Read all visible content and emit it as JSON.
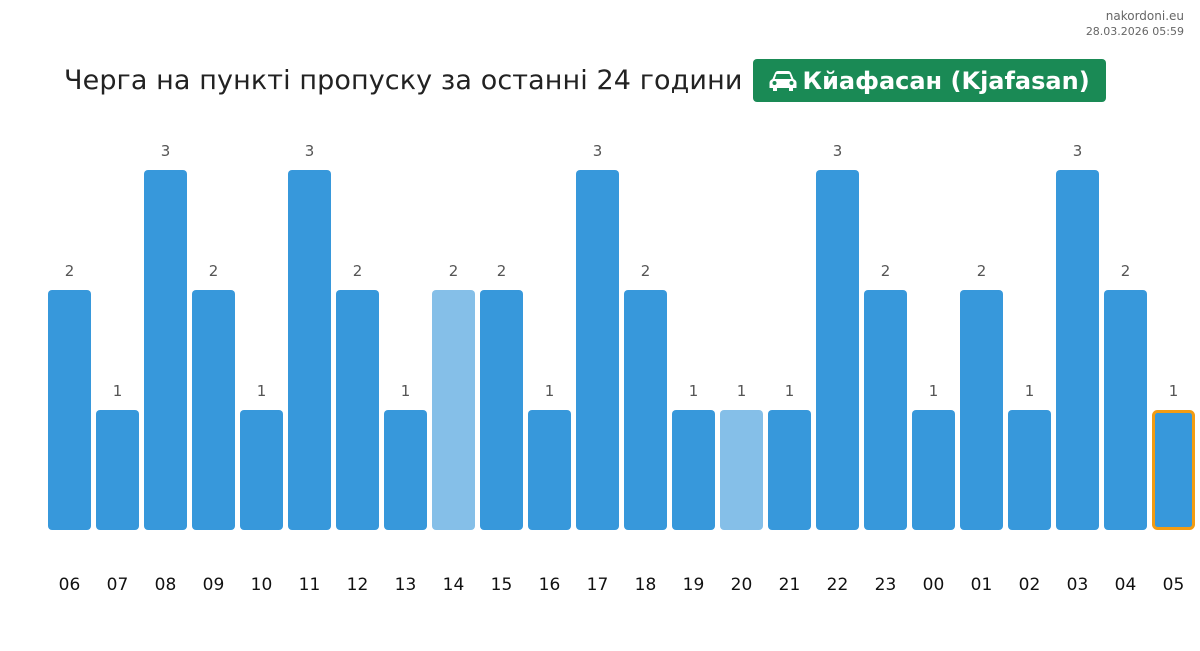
{
  "site": {
    "name": "nakordoni.eu",
    "timestamp": "28.03.2026 05:59"
  },
  "header": {
    "title": "Черга на пункті пропуску за останні 24 години",
    "crossing_name": "Кйафасан (Kjafasan)",
    "crossing_icon": "car-icon",
    "crossing_color": "#1a8a55"
  },
  "chart_data": {
    "type": "bar",
    "categories": [
      "06",
      "07",
      "08",
      "09",
      "10",
      "11",
      "12",
      "13",
      "14",
      "15",
      "16",
      "17",
      "18",
      "19",
      "20",
      "21",
      "22",
      "23",
      "00",
      "01",
      "02",
      "03",
      "04",
      "05"
    ],
    "values": [
      2,
      1,
      3,
      2,
      1,
      3,
      2,
      1,
      2,
      2,
      1,
      3,
      2,
      1,
      1,
      1,
      3,
      2,
      1,
      2,
      1,
      3,
      2,
      1
    ],
    "data_labels": [
      "2",
      "1",
      "3",
      "2",
      "1",
      "3",
      "2",
      "1",
      "2",
      "2",
      "1",
      "3",
      "2",
      "1",
      "1",
      "1",
      "3",
      "2",
      "1",
      "2",
      "1",
      "3",
      "2",
      "1"
    ],
    "title": "",
    "xlabel": "",
    "ylabel": "",
    "ylim": [
      0,
      3
    ],
    "grid": false,
    "colors": {
      "bar": "#3798db",
      "bar_light": "#85bfe8",
      "highlight_outline": "#f39c12",
      "label": "#555555",
      "tick": "#111111"
    },
    "light_bars": [
      "14",
      "20"
    ],
    "highlighted": "05"
  }
}
